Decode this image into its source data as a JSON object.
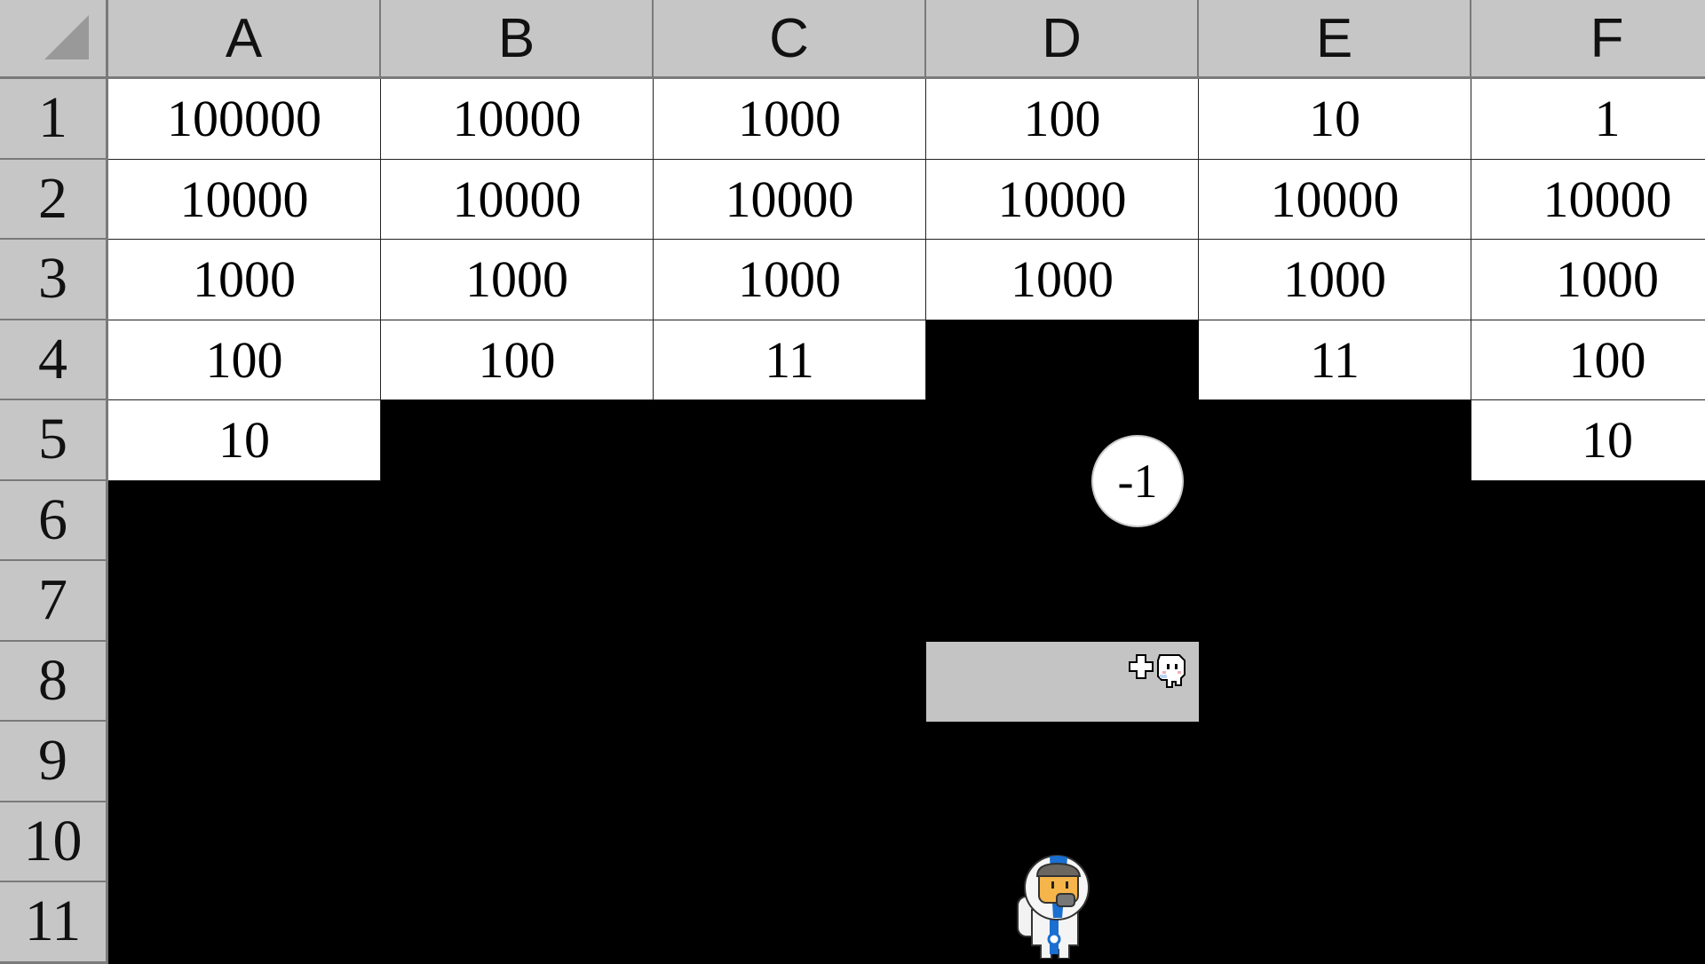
{
  "columns": [
    "A",
    "B",
    "C",
    "D",
    "E",
    "F"
  ],
  "rows": [
    "1",
    "2",
    "3",
    "4",
    "5",
    "6",
    "7",
    "8",
    "9",
    "10",
    "11"
  ],
  "cells": [
    [
      "100000",
      "10000",
      "1000",
      "100",
      "10",
      "1"
    ],
    [
      "10000",
      "10000",
      "10000",
      "10000",
      "10000",
      "10000"
    ],
    [
      "1000",
      "1000",
      "1000",
      "1000",
      "1000",
      "1000"
    ],
    [
      "100",
      "100",
      "11",
      null,
      "11",
      "100"
    ],
    [
      "10",
      null,
      null,
      null,
      null,
      "10"
    ]
  ],
  "special_cell": {
    "ref": "D8",
    "state": "gray",
    "icons": [
      "plus-icon",
      "ghost-sprite-icon"
    ]
  },
  "bubble": {
    "text": "-1"
  },
  "player": {
    "icon": "astronaut-character"
  },
  "colors": {
    "header": "#c6c6c6",
    "cell": "#ffffff",
    "void": "#000000",
    "special": "#c4c4c4",
    "astronaut_accent": "#1a6fd0"
  }
}
